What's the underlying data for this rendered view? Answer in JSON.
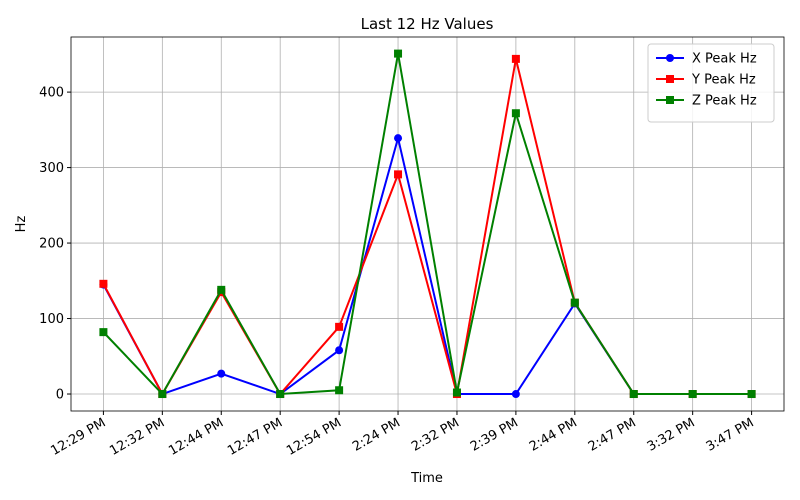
{
  "chart_data": {
    "type": "line",
    "title": "Last 12 Hz Values",
    "x_label": "Time",
    "y_label": "Hz",
    "categories": [
      "12:29 PM",
      "12:32 PM",
      "12:44 PM",
      "12:47 PM",
      "12:54 PM",
      "2:24 PM",
      "2:32 PM",
      "2:39 PM",
      "2:44 PM",
      "2:47 PM",
      "3:32 PM",
      "3:47 PM"
    ],
    "series": [
      {
        "name": "X Peak Hz",
        "color": "#0000ff",
        "marker": "circle",
        "values": [
          145,
          0,
          27,
          0,
          58,
          339,
          0,
          0,
          120,
          0,
          0,
          0
        ]
      },
      {
        "name": "Y Peak Hz",
        "color": "#ff0000",
        "marker": "square",
        "values": [
          146,
          0,
          135,
          0,
          89,
          291,
          0,
          444,
          121,
          0,
          0,
          0
        ]
      },
      {
        "name": "Z Peak Hz",
        "color": "#008000",
        "marker": "square",
        "values": [
          82,
          0,
          138,
          0,
          5,
          451,
          2,
          372,
          121,
          0,
          0,
          0
        ]
      }
    ],
    "ylim": [
      -22.5,
      473
    ],
    "yticks": [
      0,
      100,
      200,
      300,
      400
    ],
    "grid": true,
    "legend": "upper right"
  }
}
